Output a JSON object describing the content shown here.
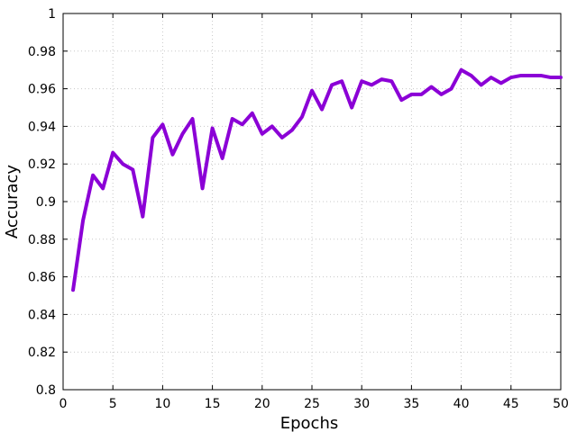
{
  "chart_data": {
    "type": "line",
    "title": "",
    "xlabel": "Epochs",
    "ylabel": "Accuracy",
    "xlim": [
      0,
      50
    ],
    "ylim": [
      0.8,
      1.0
    ],
    "xticks": [
      0,
      5,
      10,
      15,
      20,
      25,
      30,
      35,
      40,
      45,
      50
    ],
    "xtick_labels": [
      "0",
      "5",
      "10",
      "15",
      "20",
      "25",
      "30",
      "35",
      "40",
      "45",
      "50"
    ],
    "yticks": [
      0.8,
      0.82,
      0.84,
      0.86,
      0.88,
      0.9,
      0.92,
      0.94,
      0.96,
      0.98,
      1.0
    ],
    "ytick_labels": [
      "0.8",
      "0.82",
      "0.84",
      "0.86",
      "0.88",
      "0.9",
      "0.92",
      "0.94",
      "0.96",
      "0.98",
      "1"
    ],
    "grid": true,
    "legend": "none",
    "series": [
      {
        "color": "#8b00d6",
        "x": [
          1,
          2,
          3,
          4,
          5,
          6,
          7,
          8,
          9,
          10,
          11,
          12,
          13,
          14,
          15,
          16,
          17,
          18,
          19,
          20,
          21,
          22,
          23,
          24,
          25,
          26,
          27,
          28,
          29,
          30,
          31,
          32,
          33,
          34,
          35,
          36,
          37,
          38,
          39,
          40,
          41,
          42,
          43,
          44,
          45,
          46,
          47,
          48,
          49,
          50
        ],
        "values": [
          0.853,
          0.89,
          0.914,
          0.907,
          0.926,
          0.92,
          0.917,
          0.892,
          0.934,
          0.941,
          0.925,
          0.936,
          0.944,
          0.907,
          0.939,
          0.923,
          0.944,
          0.941,
          0.947,
          0.936,
          0.94,
          0.934,
          0.938,
          0.945,
          0.959,
          0.949,
          0.962,
          0.964,
          0.95,
          0.964,
          0.962,
          0.965,
          0.964,
          0.954,
          0.957,
          0.957,
          0.961,
          0.957,
          0.96,
          0.97,
          0.967,
          0.962,
          0.966,
          0.963,
          0.966,
          0.967,
          0.967,
          0.967,
          0.966,
          0.966
        ]
      }
    ]
  }
}
